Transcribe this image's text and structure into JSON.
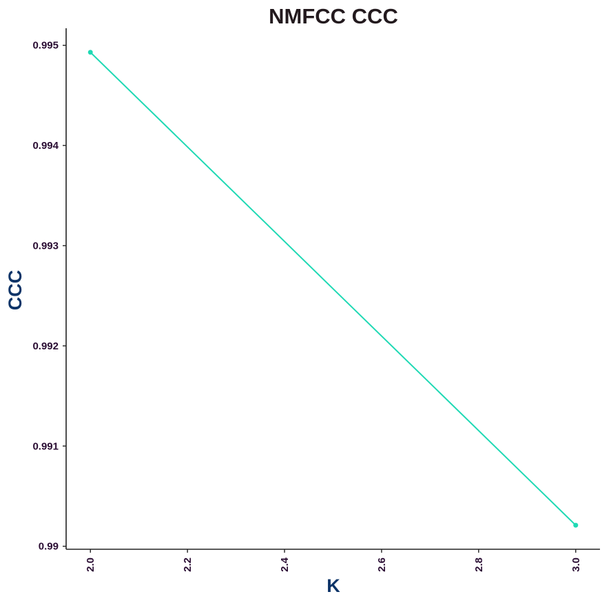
{
  "chart_data": {
    "type": "line",
    "title": "NMFCC CCC",
    "xlabel": "K",
    "ylabel": "CCC",
    "x": [
      2.0,
      3.0
    ],
    "series": [
      {
        "values": [
          0.99493,
          0.99021
        ]
      }
    ],
    "xlim": [
      1.95,
      3.05
    ],
    "ylim": [
      0.98997,
      0.99517
    ],
    "xticks": [
      2.0,
      2.2,
      2.4,
      2.6,
      2.8,
      3.0
    ],
    "xtick_labels": [
      "2.0",
      "2.2",
      "2.4",
      "2.6",
      "2.8",
      "3.0"
    ],
    "yticks": [
      0.99,
      0.991,
      0.992,
      0.993,
      0.994,
      0.995
    ],
    "ytick_labels": [
      "0.99",
      "0.991",
      "0.992",
      "0.993",
      "0.994",
      "0.995"
    ],
    "grid": false,
    "legend": "none",
    "colors": {
      "line": "#1fd9b4",
      "axis": "#222222",
      "title": "#231a1e",
      "axis_label": "#0d3468",
      "tick_label": "#2a0d33"
    }
  }
}
